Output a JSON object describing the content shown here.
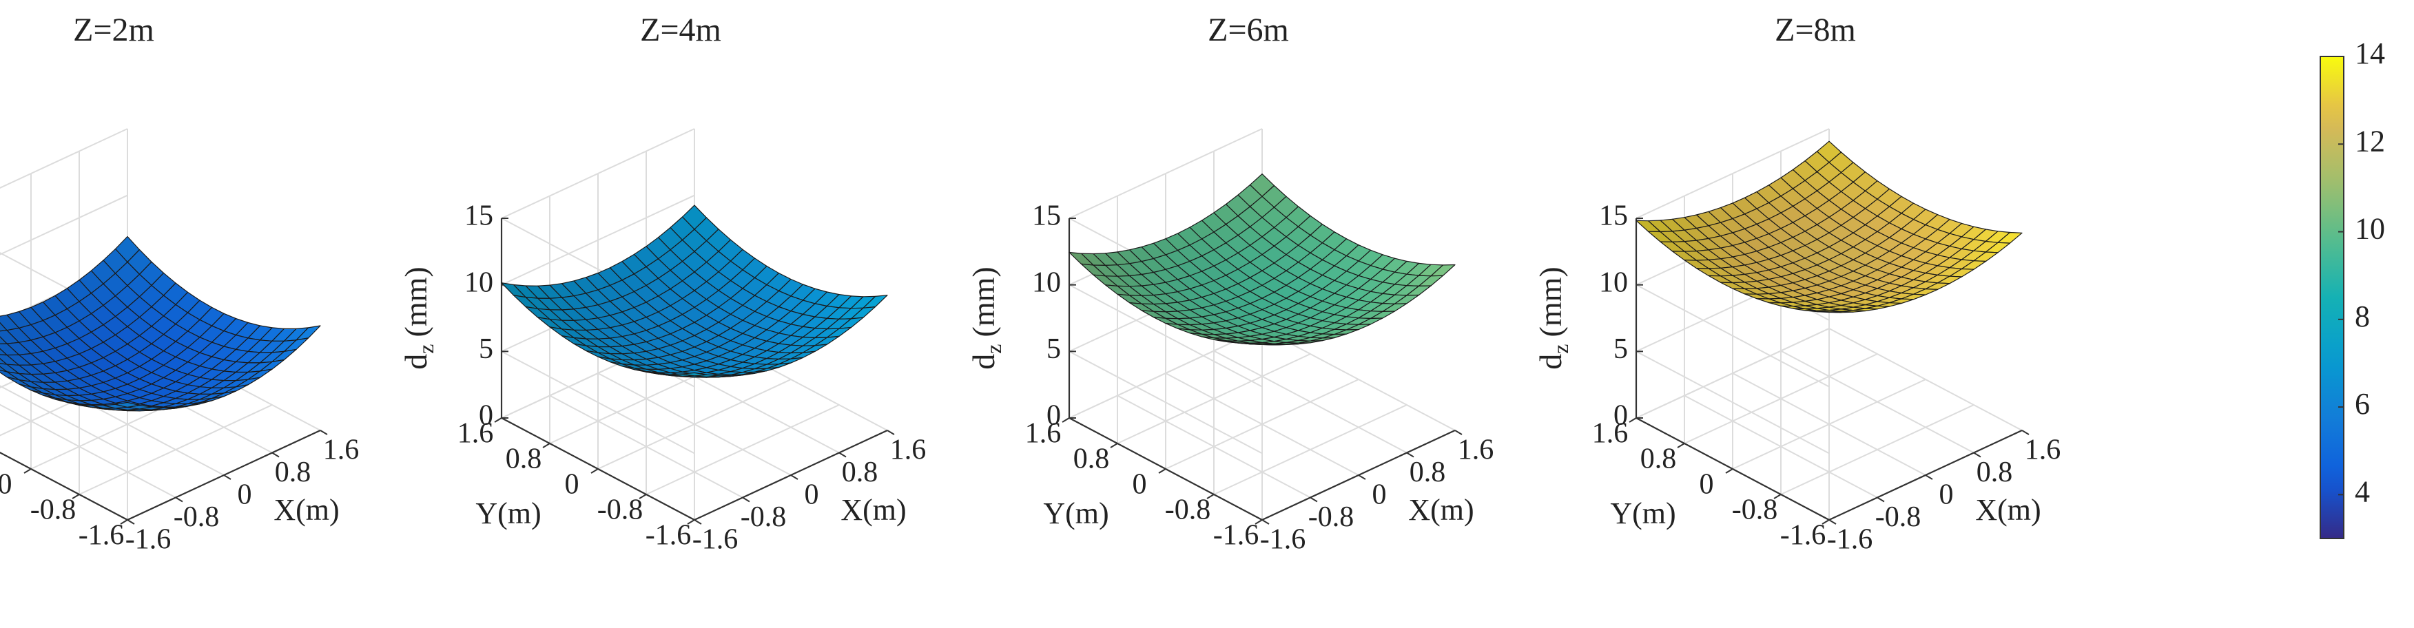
{
  "chart_data": {
    "type": "surface",
    "colormap": "parula",
    "grid_size": 17,
    "surface_model": "dz = center + curvature*(x^2 + y^2) + tilt*(x + y)",
    "panels": [
      {
        "title": "Z=2m",
        "center": 3.0,
        "curvature": 0.95,
        "tilt": -0.3,
        "face_value": 4.9
      },
      {
        "title": "Z=4m",
        "center": 5.8,
        "curvature": 0.85,
        "tilt": -0.28,
        "face_value": 6.6
      },
      {
        "title": "Z=6m",
        "center": 8.6,
        "curvature": 0.75,
        "tilt": -0.26,
        "face_value": 9.9
      },
      {
        "title": "Z=8m",
        "center": 11.5,
        "curvature": 0.65,
        "tilt": -0.24,
        "face_value": 12.9
      }
    ],
    "x_axis": {
      "label": "X(m)",
      "range": [
        -1.6,
        1.6
      ],
      "tick_values": [
        -1.6,
        -0.8,
        0,
        0.8,
        1.6
      ],
      "tick_labels": [
        "-1.6",
        "-0.8",
        "0",
        "0.8",
        "1.6"
      ]
    },
    "y_axis": {
      "label": "Y(m)",
      "range": [
        -1.6,
        1.6
      ],
      "tick_values": [
        -1.6,
        -0.8,
        0,
        0.8,
        1.6
      ],
      "tick_labels": [
        "-1.6",
        "-0.8",
        "0",
        "0.8",
        "1.6"
      ]
    },
    "z_axis": {
      "label_main": "d",
      "label_sub": "z",
      "label_unit": "(mm)",
      "range": [
        0,
        15
      ],
      "tick_values": [
        0,
        5,
        10,
        15
      ],
      "tick_labels": [
        "0",
        "5",
        "10",
        "15"
      ]
    },
    "colorbar": {
      "range": [
        3,
        14
      ],
      "tick_values": [
        4,
        6,
        8,
        10,
        12,
        14
      ],
      "tick_labels": [
        "4",
        "6",
        "8",
        "10",
        "12",
        "14"
      ]
    },
    "grid": true
  }
}
